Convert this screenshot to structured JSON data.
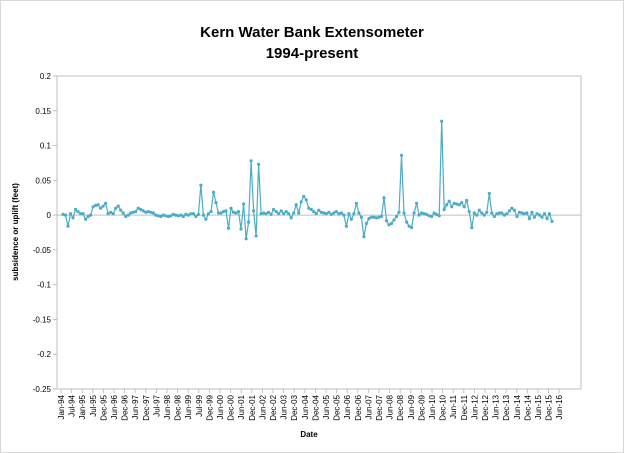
{
  "chart_data": {
    "type": "line",
    "title": "Kern Water Bank Extensometer",
    "subtitle": "1994-present",
    "xlabel": "Date",
    "ylabel": "subsidence or uplift (feet)",
    "ylim": [
      -0.25,
      0.2
    ],
    "yticks": [
      "0.2",
      "0.15",
      "0.1",
      "0.05",
      "0",
      "-0.05",
      "-0.1",
      "-0.15",
      "-0.2",
      "-0.25"
    ],
    "xticks": [
      "Jan-94",
      "Jul-94",
      "Jan-95",
      "Jul-95",
      "Dec-95",
      "Jun-96",
      "Dec-96",
      "Jun-97",
      "Dec-97",
      "Jul-97",
      "Jun-98",
      "Dec-98",
      "Jun-99",
      "Jul-99",
      "Dec-99",
      "Jun-00",
      "Dec-00",
      "Jun-01",
      "Dec-01",
      "Jun-02",
      "Dec-02",
      "Jun-03",
      "Dec-03",
      "Jun-04",
      "Dec-04",
      "Jun-05",
      "Dec-05",
      "Jun-06",
      "Dec-06",
      "Jun-07",
      "Dec-07",
      "Jun-08",
      "Dec-08",
      "Jun-09",
      "Dec-09",
      "Jun-10",
      "Dec-10",
      "Jun-11",
      "Dec-11",
      "Jun-12",
      "Dec-12",
      "Jun-13",
      "Dec-13",
      "Jun-14",
      "Dec-14",
      "Jun-15",
      "Dec-15",
      "Jun-16"
    ],
    "grid": false,
    "legend": "none",
    "series": [
      {
        "color": "#4BACC6",
        "values": [
          0.001,
          0.0,
          -0.016,
          0.002,
          -0.004,
          0.008,
          0.005,
          0.002,
          0.002,
          -0.006,
          -0.002,
          0.0,
          0.012,
          0.014,
          0.015,
          0.01,
          0.013,
          0.017,
          0.002,
          0.004,
          0.002,
          0.01,
          0.013,
          0.007,
          0.003,
          -0.002,
          0.0,
          0.003,
          0.004,
          0.005,
          0.01,
          0.008,
          0.006,
          0.004,
          0.005,
          0.004,
          0.003,
          0.0,
          -0.001,
          -0.002,
          0.0,
          -0.001,
          -0.002,
          -0.001,
          0.001,
          0.0,
          -0.001,
          0.0,
          -0.002,
          0.001,
          0.0,
          0.002,
          0.002,
          -0.002,
          0.001,
          0.043,
          0.0,
          -0.006,
          0.002,
          0.005,
          0.033,
          0.018,
          0.003,
          0.003,
          0.005,
          0.006,
          -0.019,
          0.01,
          0.004,
          0.003,
          0.005,
          -0.02,
          0.016,
          -0.034,
          -0.01,
          0.078,
          0.006,
          -0.03,
          0.073,
          0.002,
          0.003,
          0.002,
          0.004,
          0.001,
          0.008,
          0.005,
          0.002,
          0.006,
          0.002,
          0.005,
          0.002,
          -0.004,
          0.003,
          0.015,
          0.003,
          0.019,
          0.027,
          0.022,
          0.01,
          0.008,
          0.005,
          0.002,
          0.007,
          0.004,
          0.003,
          0.002,
          0.004,
          0.001,
          0.003,
          0.005,
          0.002,
          0.003,
          0.0,
          -0.016,
          0.002,
          -0.006,
          0.002,
          0.017,
          0.003,
          -0.003,
          -0.031,
          -0.012,
          -0.005,
          -0.003,
          -0.003,
          -0.004,
          -0.003,
          -0.002,
          0.025,
          -0.008,
          -0.014,
          -0.012,
          -0.007,
          -0.002,
          0.004,
          0.086,
          0.003,
          -0.01,
          -0.016,
          -0.018,
          0.003,
          0.017,
          0.0,
          0.003,
          0.002,
          0.001,
          -0.001,
          -0.002,
          0.003,
          0.001,
          -0.001,
          0.135,
          0.008,
          0.015,
          0.02,
          0.012,
          0.017,
          0.016,
          0.015,
          0.018,
          0.012,
          0.021,
          0.005,
          -0.018,
          0.003,
          0.0,
          0.007,
          0.003,
          0.0,
          0.004,
          0.031,
          0.003,
          -0.002,
          0.002,
          0.003,
          0.003,
          0.0,
          0.002,
          0.006,
          0.01,
          0.007,
          -0.002,
          0.004,
          0.003,
          0.002,
          0.003,
          -0.005,
          0.004,
          -0.003,
          0.002,
          0.0,
          -0.003,
          0.002,
          -0.005,
          0.002,
          -0.009
        ]
      }
    ]
  }
}
